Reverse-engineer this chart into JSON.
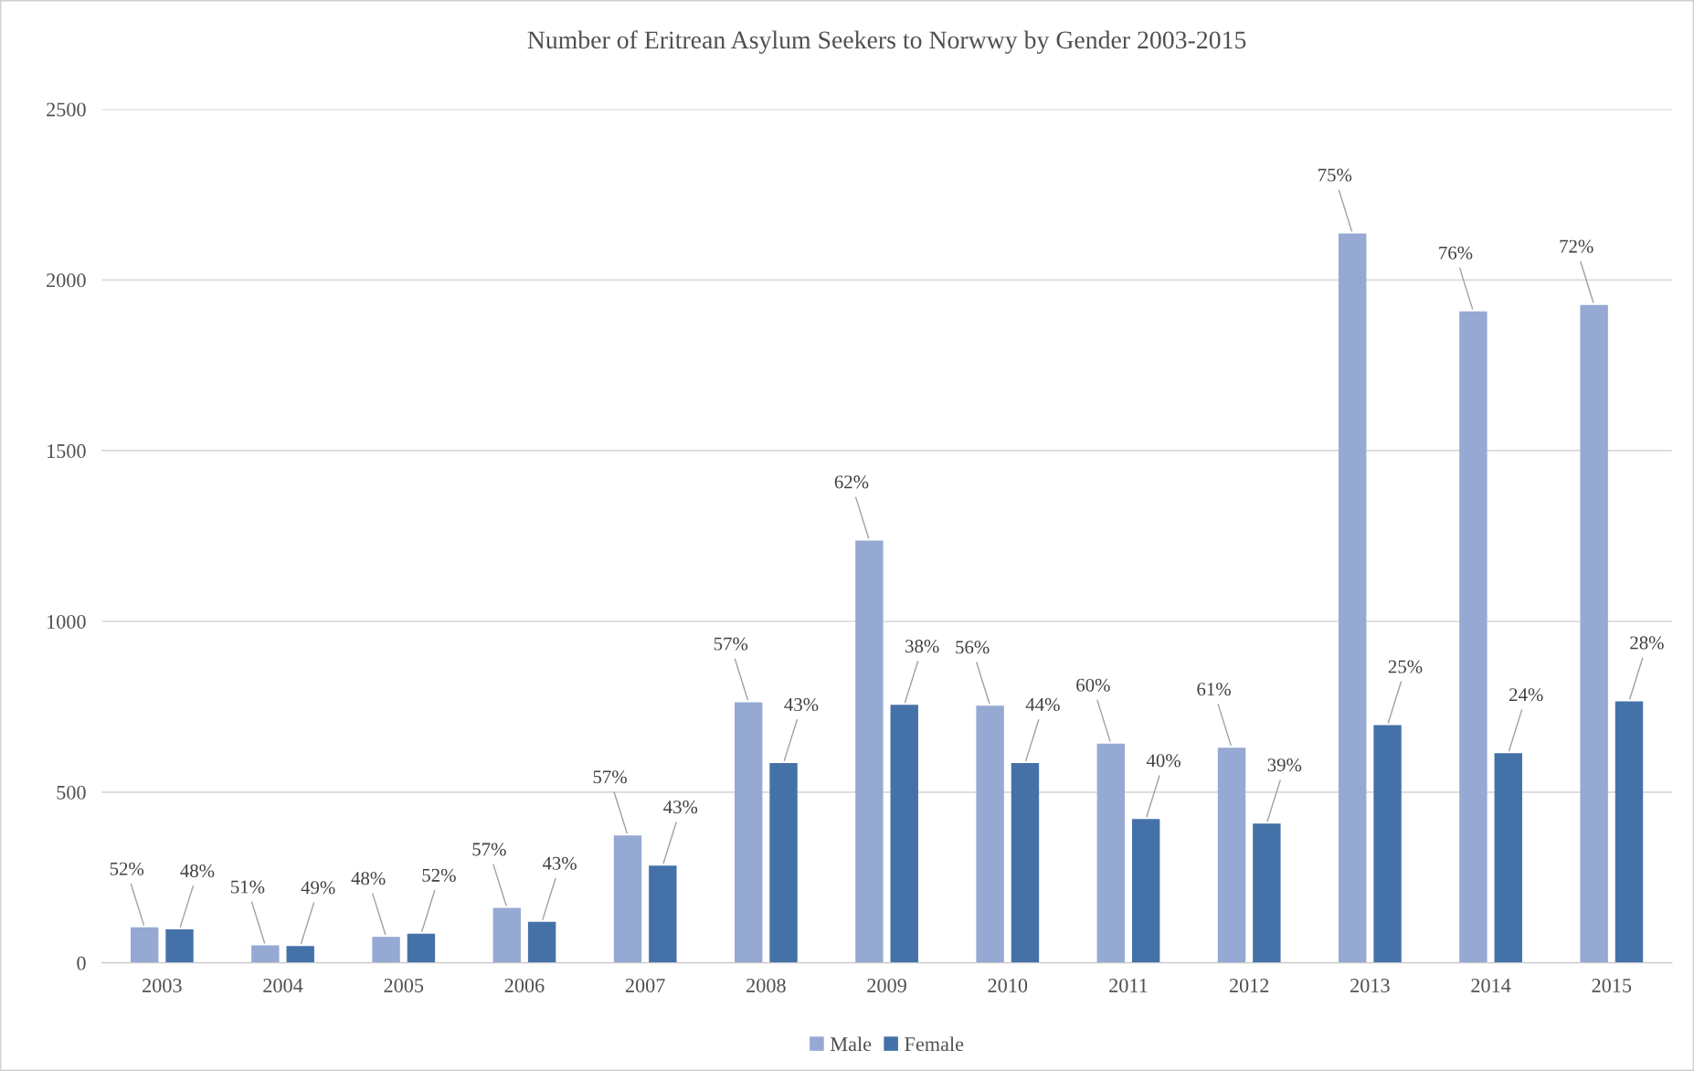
{
  "chart_data": {
    "type": "bar",
    "title": "Number of Eritrean Asylum Seekers to Norwwy by Gender 2003-2015",
    "categories": [
      "2003",
      "2004",
      "2005",
      "2006",
      "2007",
      "2008",
      "2009",
      "2010",
      "2011",
      "2012",
      "2013",
      "2014",
      "2015"
    ],
    "series": [
      {
        "name": "Male",
        "color": "#95a9d3",
        "values": [
          104,
          51,
          76,
          161,
          373,
          763,
          1237,
          753,
          642,
          630,
          2136,
          1908,
          1927
        ]
      },
      {
        "name": "Female",
        "color": "#4472a8",
        "values": [
          98,
          49,
          85,
          120,
          285,
          585,
          756,
          585,
          421,
          408,
          696,
          614,
          766
        ]
      }
    ],
    "annotations": [
      {
        "text": "52%",
        "x": "2003",
        "y": 104
      },
      {
        "text": "48%",
        "x": "2003",
        "y": 98
      },
      {
        "text": "51%",
        "x": "2004",
        "y": 51
      },
      {
        "text": "49%",
        "x": "2004",
        "y": 49
      },
      {
        "text": "48%",
        "x": "2005",
        "y": 76
      },
      {
        "text": "52%",
        "x": "2005",
        "y": 85
      },
      {
        "text": "57%",
        "x": "2006",
        "y": 161
      },
      {
        "text": "43%",
        "x": "2006",
        "y": 120
      },
      {
        "text": "57%",
        "x": "2007",
        "y": 373
      },
      {
        "text": "43%",
        "x": "2007",
        "y": 285
      },
      {
        "text": "57%",
        "x": "2008",
        "y": 763
      },
      {
        "text": "43%",
        "x": "2008",
        "y": 585
      },
      {
        "text": "62%",
        "x": "2009",
        "y": 1237
      },
      {
        "text": "38%",
        "x": "2009",
        "y": 756
      },
      {
        "text": "56%",
        "x": "2010",
        "y": 753
      },
      {
        "text": "44%",
        "x": "2010",
        "y": 585
      },
      {
        "text": "60%",
        "x": "2011",
        "y": 642
      },
      {
        "text": "40%",
        "x": "2011",
        "y": 421
      },
      {
        "text": "61%",
        "x": "2012",
        "y": 630
      },
      {
        "text": "39%",
        "x": "2012",
        "y": 408
      },
      {
        "text": "75%",
        "x": "2013",
        "y": 2136
      },
      {
        "text": "25%",
        "x": "2013",
        "y": 696
      },
      {
        "text": "76%",
        "x": "2014",
        "y": 1908
      },
      {
        "text": "24%",
        "x": "2014",
        "y": 614
      },
      {
        "text": "72%",
        "x": "2015",
        "y": 1927
      },
      {
        "text": "28%",
        "x": "2015",
        "y": 766
      }
    ],
    "ylim": [
      0,
      2500
    ],
    "yticks": [
      0,
      500,
      1000,
      1500,
      2000,
      2500
    ],
    "grid": "y",
    "legend": "bottom"
  }
}
